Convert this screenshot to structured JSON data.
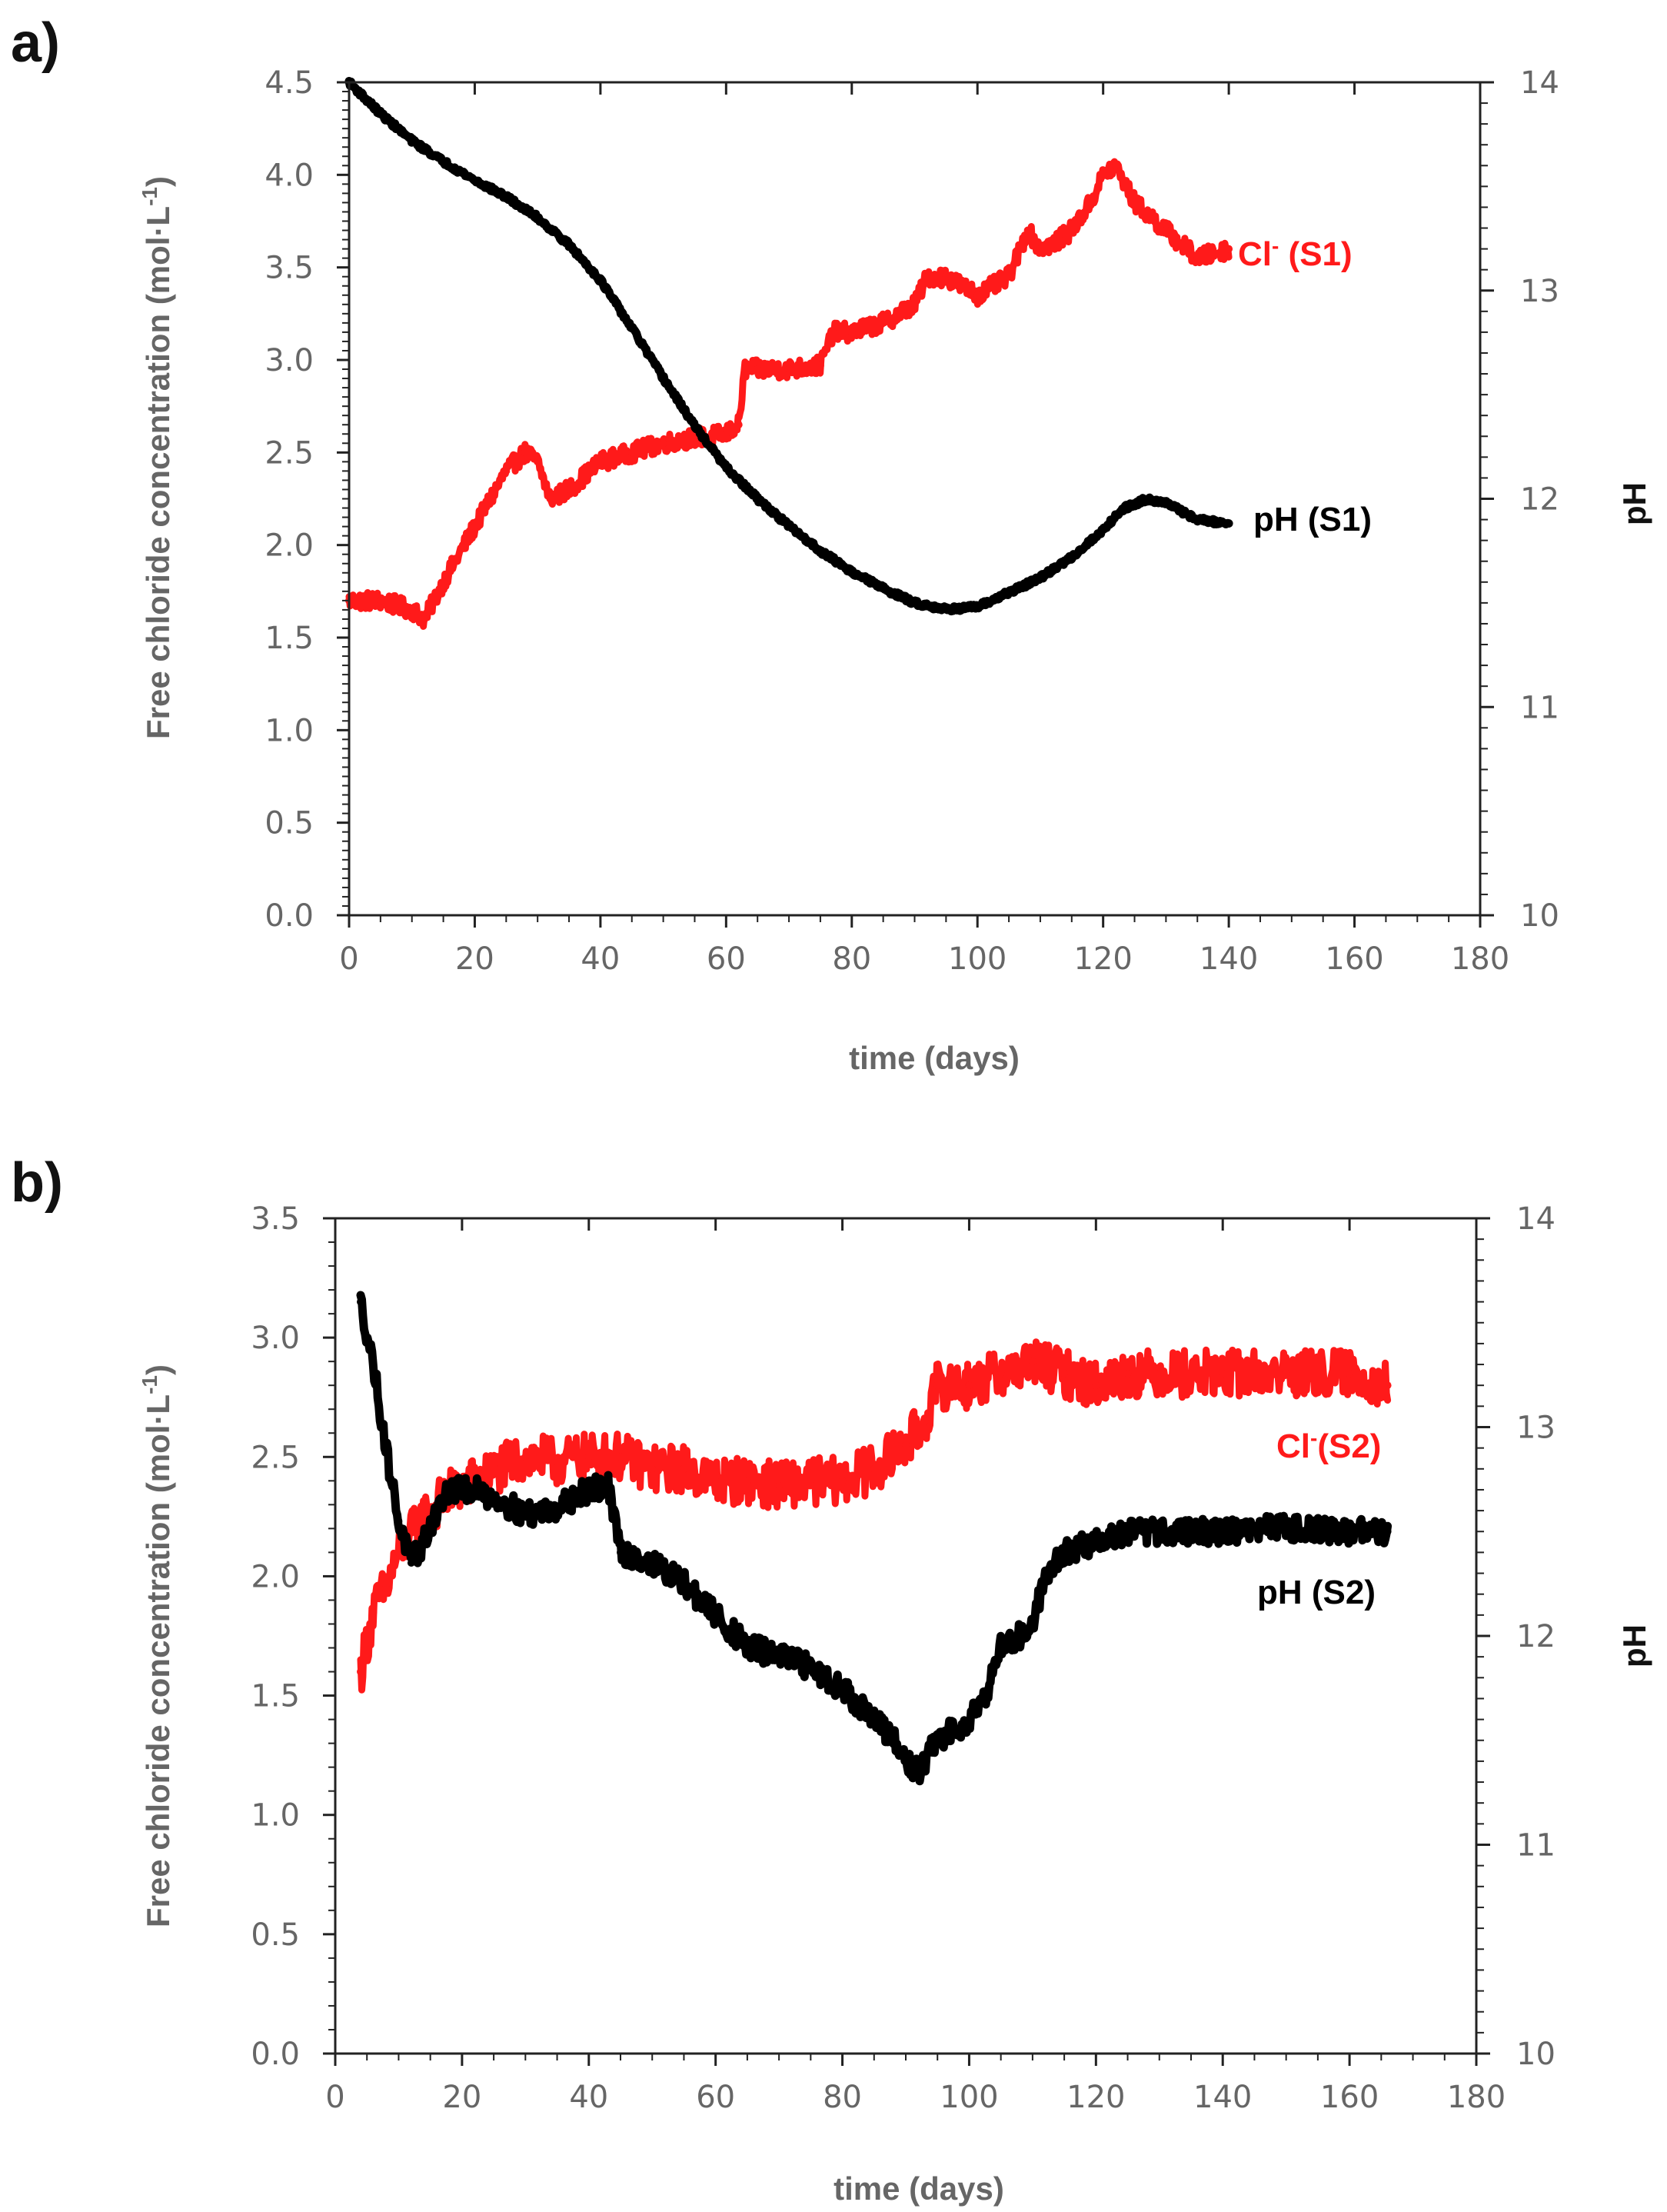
{
  "chart_data": [
    {
      "panel_label": "a)",
      "type": "line",
      "xlabel": "time (days)",
      "ylabel_prefix": "Free chloride concentration (mol·L",
      "ylabel_sup": "-1",
      "ylabel_suffix": ")",
      "y2label": "pH",
      "xlim": [
        0,
        180
      ],
      "ylim": [
        0,
        4.5
      ],
      "y2lim": [
        10,
        14
      ],
      "x_ticks": [
        "0",
        "20",
        "40",
        "60",
        "80",
        "100",
        "120",
        "140",
        "160",
        "180"
      ],
      "y_ticks": [
        "0.0",
        "0.5",
        "1.0",
        "1.5",
        "2.0",
        "2.5",
        "3.0",
        "3.5",
        "4.0",
        "4.5"
      ],
      "y2_ticks": [
        "10",
        "11",
        "12",
        "13",
        "14"
      ],
      "colors": {
        "chloride": "#ff1a1a",
        "ph": "#000000"
      },
      "series": [
        {
          "name": "Cl- (S1)",
          "label_main": "Cl",
          "label_sup": "-",
          "label_rest": " (S1)",
          "axis": "left",
          "color": "#ff1a1a",
          "noise": 0.05,
          "x": [
            0,
            5,
            10,
            12,
            15,
            20,
            25,
            28,
            30,
            32,
            35,
            40,
            45,
            50,
            55,
            60,
            62,
            63,
            65,
            70,
            75,
            77,
            80,
            85,
            90,
            92,
            95,
            100,
            105,
            108,
            110,
            113,
            115,
            118,
            120,
            122,
            125,
            130,
            135,
            140
          ],
          "values": [
            1.7,
            1.7,
            1.65,
            1.6,
            1.8,
            2.1,
            2.4,
            2.5,
            2.45,
            2.25,
            2.3,
            2.45,
            2.5,
            2.55,
            2.58,
            2.6,
            2.65,
            2.95,
            2.95,
            2.95,
            2.97,
            3.15,
            3.15,
            3.2,
            3.3,
            3.45,
            3.45,
            3.35,
            3.45,
            3.7,
            3.6,
            3.65,
            3.7,
            3.85,
            4.0,
            4.05,
            3.85,
            3.7,
            3.55,
            3.6
          ]
        },
        {
          "name": "pH (S1)",
          "label_main": "pH (S1)",
          "axis": "right",
          "color": "#000000",
          "noise": 0.012,
          "x": [
            0,
            5,
            10,
            15,
            20,
            25,
            30,
            35,
            40,
            45,
            50,
            55,
            60,
            65,
            70,
            75,
            80,
            85,
            90,
            95,
            100,
            105,
            110,
            115,
            120,
            123,
            127,
            130,
            135,
            140
          ],
          "values": [
            14.0,
            13.85,
            13.72,
            13.62,
            13.53,
            13.45,
            13.35,
            13.22,
            13.05,
            12.82,
            12.58,
            12.35,
            12.15,
            12.0,
            11.87,
            11.75,
            11.65,
            11.57,
            11.5,
            11.47,
            11.48,
            11.55,
            11.62,
            11.72,
            11.85,
            11.95,
            12.0,
            11.98,
            11.9,
            11.88
          ]
        }
      ]
    },
    {
      "panel_label": "b)",
      "type": "line",
      "xlabel": "time (days)",
      "ylabel_prefix": "Free chloride concentration (mol·L",
      "ylabel_sup": "-1",
      "ylabel_suffix": ")",
      "y2label": "pH",
      "xlim": [
        0,
        180
      ],
      "ylim": [
        0,
        3.5
      ],
      "y2lim": [
        10,
        14
      ],
      "x_ticks": [
        "0",
        "20",
        "40",
        "60",
        "80",
        "100",
        "120",
        "140",
        "160",
        "180"
      ],
      "y_ticks": [
        "0.0",
        "0.5",
        "1.0",
        "1.5",
        "2.0",
        "2.5",
        "3.0",
        "3.5"
      ],
      "y2_ticks": [
        "10",
        "11",
        "12",
        "13",
        "14"
      ],
      "colors": {
        "chloride": "#ff1a1a",
        "ph": "#000000"
      },
      "series": [
        {
          "name": "Cl-(S2)",
          "label_main": "Cl",
          "label_sup": "-",
          "label_rest": "(S2)",
          "axis": "left",
          "color": "#ff1a1a",
          "noise": 0.1,
          "x": [
            4,
            6,
            8,
            10,
            14,
            18,
            22,
            26,
            30,
            35,
            40,
            45,
            50,
            55,
            60,
            65,
            70,
            75,
            80,
            85,
            90,
            93,
            95,
            100,
            105,
            110,
            115,
            120,
            125,
            130,
            140,
            150,
            160,
            166
          ],
          "values": [
            1.6,
            1.85,
            1.95,
            2.1,
            2.25,
            2.35,
            2.4,
            2.45,
            2.5,
            2.48,
            2.5,
            2.5,
            2.45,
            2.45,
            2.4,
            2.4,
            2.38,
            2.4,
            2.4,
            2.45,
            2.55,
            2.65,
            2.8,
            2.8,
            2.85,
            2.9,
            2.85,
            2.8,
            2.85,
            2.85,
            2.85,
            2.85,
            2.85,
            2.8
          ]
        },
        {
          "name": "pH (S2)",
          "label_main": "pH (S2)",
          "axis": "right",
          "color": "#000000",
          "noise": 0.06,
          "x": [
            4,
            6,
            8,
            10,
            12,
            14,
            16,
            18,
            22,
            26,
            30,
            35,
            40,
            43,
            45,
            50,
            55,
            60,
            65,
            70,
            75,
            80,
            85,
            88,
            90,
            92,
            95,
            100,
            103,
            105,
            108,
            110,
            112,
            115,
            120,
            125,
            130,
            140,
            150,
            160,
            166
          ],
          "values": [
            13.6,
            13.3,
            12.9,
            12.55,
            12.35,
            12.45,
            12.6,
            12.7,
            12.7,
            12.65,
            12.58,
            12.62,
            12.7,
            12.72,
            12.4,
            12.35,
            12.25,
            12.1,
            11.95,
            11.9,
            11.85,
            11.75,
            11.6,
            11.5,
            11.4,
            11.35,
            11.5,
            11.6,
            11.75,
            11.95,
            12.0,
            12.05,
            12.3,
            12.4,
            12.45,
            12.5,
            12.5,
            12.5,
            12.52,
            12.5,
            12.5
          ]
        }
      ]
    }
  ]
}
